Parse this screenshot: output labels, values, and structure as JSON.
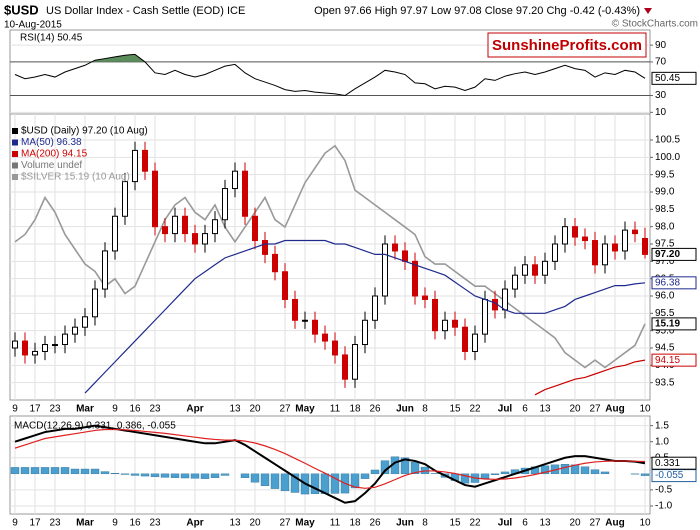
{
  "header": {
    "symbol": "$USD",
    "name": "US Dollar Index - Cash Settle (EOD) ICE",
    "date": "10-Aug-2015",
    "quote": "Open 97.66 High 97.97 Low 97.08 Close 97.20 Chg -0.42 (-0.43%)",
    "watermark": "© StockCharts.com",
    "brand": "SunshineProfits.com"
  },
  "chart_data": [
    {
      "type": "line",
      "title": "RSI(14) 50.45",
      "color": "#000000",
      "fill_above": 70,
      "fill_color": "#5b8c5b",
      "reference_lines": [
        70,
        30
      ],
      "values": [
        55,
        50,
        52,
        55,
        52,
        58,
        62,
        66,
        72,
        74,
        76,
        78,
        79,
        70,
        57,
        55,
        60,
        55,
        52,
        55,
        60,
        65,
        67,
        57,
        50,
        46,
        42,
        37,
        35,
        36,
        34,
        33,
        32,
        30,
        38,
        45,
        52,
        60,
        58,
        55,
        45,
        44,
        38,
        41,
        40,
        36,
        40,
        50,
        48,
        53,
        56,
        58,
        55,
        58,
        62,
        66,
        62,
        60,
        52,
        57,
        55,
        60,
        58,
        50.45
      ],
      "ylim": [
        8,
        108
      ],
      "yticks": [
        10,
        30,
        70,
        90
      ],
      "grid": true
    },
    {
      "type": "candlestick",
      "name": "$USD (Daily) 97.20 (10 Aug)",
      "close_label": "97.20",
      "up_color": "#000000",
      "down_color": "#cc0000",
      "volume_legend": "Volume undef",
      "categories": [
        "9",
        null,
        "17",
        null,
        "23",
        null,
        null,
        "Mar",
        null,
        null,
        "9",
        null,
        "16",
        null,
        "23",
        null,
        null,
        null,
        "Apr",
        null,
        null,
        null,
        "13",
        null,
        "20",
        null,
        null,
        "27",
        null,
        "May",
        null,
        null,
        "11",
        null,
        "18",
        null,
        "26",
        null,
        null,
        "Jun",
        null,
        "8",
        null,
        null,
        "15",
        null,
        "22",
        null,
        null,
        "Jul",
        null,
        "6",
        null,
        "13",
        null,
        null,
        "20",
        null,
        "27",
        null,
        "Aug",
        null,
        null,
        "10"
      ],
      "open": [
        94.5,
        94.7,
        94.3,
        94.4,
        94.6,
        94.6,
        94.9,
        95.1,
        95.4,
        96.2,
        97.3,
        98.3,
        99.3,
        100.2,
        99.6,
        98.0,
        97.8,
        98.3,
        97.8,
        97.5,
        97.8,
        98.2,
        99.1,
        99.6,
        98.3,
        97.6,
        97.2,
        96.7,
        95.9,
        95.3,
        95.3,
        94.9,
        94.7,
        94.3,
        93.6,
        94.6,
        95.3,
        96.0,
        97.5,
        97.3,
        97.0,
        96.0,
        95.9,
        95.0,
        95.3,
        95.1,
        94.4,
        94.9,
        95.9,
        95.6,
        96.2,
        96.6,
        96.9,
        96.6,
        97.0,
        97.5,
        98.0,
        97.7,
        97.6,
        96.9,
        97.5,
        97.3,
        97.9,
        97.66
      ],
      "high": [
        94.95,
        94.95,
        94.65,
        94.85,
        94.85,
        95.15,
        95.35,
        95.65,
        96.45,
        97.55,
        98.55,
        99.55,
        100.45,
        100.45,
        99.85,
        98.25,
        98.55,
        98.55,
        98.05,
        98.05,
        98.45,
        99.35,
        99.85,
        99.85,
        98.55,
        97.85,
        97.45,
        96.95,
        96.15,
        95.55,
        95.55,
        95.15,
        94.95,
        94.55,
        94.85,
        95.55,
        96.25,
        97.75,
        97.75,
        97.55,
        97.25,
        96.25,
        96.15,
        95.55,
        95.55,
        95.35,
        95.15,
        96.15,
        96.15,
        96.45,
        96.85,
        97.15,
        97.15,
        97.25,
        97.75,
        98.25,
        98.25,
        97.95,
        97.85,
        97.75,
        97.75,
        98.15,
        98.15,
        97.97
      ],
      "low": [
        94.25,
        94.05,
        94.05,
        94.15,
        94.35,
        94.35,
        94.65,
        94.85,
        95.15,
        95.95,
        97.05,
        98.05,
        99.05,
        99.35,
        97.75,
        97.55,
        97.55,
        97.55,
        97.25,
        97.25,
        97.55,
        97.95,
        98.85,
        98.05,
        97.35,
        96.95,
        96.45,
        95.65,
        95.05,
        95.05,
        94.65,
        94.45,
        94.05,
        93.35,
        93.35,
        94.35,
        95.05,
        95.75,
        97.05,
        96.75,
        95.75,
        95.65,
        94.75,
        94.75,
        94.85,
        94.15,
        94.15,
        94.65,
        95.35,
        95.35,
        95.95,
        96.35,
        96.35,
        96.35,
        96.75,
        97.25,
        97.45,
        97.35,
        96.65,
        96.65,
        97.05,
        97.05,
        97.55,
        97.08
      ],
      "close": [
        94.7,
        94.3,
        94.4,
        94.6,
        94.6,
        94.9,
        95.1,
        95.4,
        96.2,
        97.3,
        98.3,
        99.3,
        100.2,
        99.6,
        98.0,
        97.8,
        98.3,
        97.8,
        97.5,
        97.8,
        98.2,
        99.1,
        99.6,
        98.3,
        97.6,
        97.2,
        96.7,
        95.9,
        95.3,
        95.3,
        94.9,
        94.7,
        94.3,
        93.6,
        94.6,
        95.3,
        96.0,
        97.5,
        97.3,
        97.0,
        96.0,
        95.9,
        95.0,
        95.3,
        95.1,
        94.4,
        94.9,
        95.9,
        95.6,
        96.2,
        96.6,
        96.9,
        96.6,
        97.0,
        97.5,
        98.0,
        97.7,
        97.6,
        96.9,
        97.5,
        97.3,
        97.9,
        97.8,
        97.2
      ],
      "series": [
        {
          "name": "MA(50) 96.38",
          "color": "#1f2a8c",
          "values": [
            null,
            null,
            null,
            null,
            null,
            null,
            null,
            93.2,
            93.5,
            93.8,
            94.1,
            94.4,
            94.7,
            95.0,
            95.3,
            95.6,
            95.9,
            96.2,
            96.5,
            96.7,
            96.9,
            97.1,
            97.2,
            97.3,
            97.4,
            97.5,
            97.5,
            97.6,
            97.6,
            97.6,
            97.6,
            97.6,
            97.5,
            97.5,
            97.4,
            97.3,
            97.2,
            97.2,
            97.1,
            97.0,
            96.9,
            96.8,
            96.7,
            96.6,
            96.4,
            96.2,
            96.0,
            95.9,
            95.8,
            95.6,
            95.5,
            95.5,
            95.5,
            95.5,
            95.6,
            95.7,
            95.9,
            96.0,
            96.1,
            96.2,
            96.3,
            96.3,
            96.35,
            96.38
          ]
        },
        {
          "name": "MA(200) 94.15",
          "color": "#cc0000",
          "values": [
            null,
            null,
            null,
            null,
            null,
            null,
            null,
            null,
            null,
            null,
            null,
            null,
            null,
            null,
            null,
            null,
            null,
            null,
            null,
            null,
            null,
            null,
            null,
            null,
            null,
            null,
            null,
            null,
            null,
            null,
            null,
            null,
            null,
            null,
            null,
            null,
            null,
            null,
            null,
            null,
            null,
            null,
            null,
            null,
            null,
            null,
            null,
            null,
            null,
            null,
            null,
            null,
            93.15,
            93.3,
            93.4,
            93.5,
            93.6,
            93.65,
            93.75,
            93.85,
            93.95,
            94.0,
            94.1,
            94.15
          ]
        },
        {
          "name": "$SILVER 15.19 (10 Aug)",
          "color": "#999999",
          "axis": "y2",
          "values": [
            16.3,
            16.4,
            16.6,
            16.9,
            16.7,
            16.4,
            16.2,
            16.0,
            15.9,
            15.7,
            15.8,
            15.6,
            15.7,
            16.0,
            16.3,
            16.6,
            16.8,
            16.9,
            16.7,
            16.6,
            16.8,
            16.5,
            16.3,
            16.5,
            16.7,
            16.9,
            16.6,
            16.5,
            16.8,
            17.1,
            17.3,
            17.5,
            17.6,
            17.4,
            17.0,
            16.9,
            16.8,
            16.7,
            16.6,
            16.5,
            16.4,
            16.1,
            16.0,
            16.0,
            15.9,
            15.8,
            15.7,
            15.7,
            15.6,
            15.5,
            15.4,
            15.3,
            15.2,
            15.1,
            15.0,
            14.8,
            14.7,
            14.6,
            14.7,
            14.6,
            14.7,
            14.8,
            14.9,
            15.19
          ]
        }
      ],
      "ylim": [
        93.0,
        101.25
      ],
      "y2lim": [
        14.16,
        18.03
      ],
      "yticks": [
        93.5,
        {
          "value": 94,
          "label": "94.0"
        },
        94.5,
        {
          "value": 95,
          "label": "95.0"
        },
        95.5,
        {
          "value": 96,
          "label": "96.0"
        },
        96.5,
        {
          "value": 97,
          "label": "97.0"
        },
        97.5,
        {
          "value": 98,
          "label": "98.0"
        },
        98.5,
        {
          "value": 99,
          "label": "99.0"
        },
        99.5,
        {
          "value": 100,
          "label": "100.0"
        },
        100.5
      ],
      "grid": true
    },
    {
      "type": "macd",
      "title": "MACD(12,26,9) 0.331, 0.386, -0.055",
      "categories": [
        "9",
        null,
        "17",
        null,
        "23",
        null,
        null,
        "Mar",
        null,
        null,
        "9",
        null,
        "16",
        null,
        "23",
        null,
        null,
        null,
        "Apr",
        null,
        null,
        null,
        "13",
        null,
        "20",
        null,
        null,
        "27",
        null,
        "May",
        null,
        null,
        "11",
        null,
        "18",
        null,
        "26",
        null,
        null,
        "Jun",
        null,
        "8",
        null,
        null,
        "15",
        null,
        "22",
        null,
        null,
        "Jul",
        null,
        "6",
        null,
        "13",
        null,
        null,
        "20",
        null,
        "27",
        null,
        "Aug",
        null,
        null,
        "10"
      ],
      "series": [
        {
          "kind": "bar",
          "color": "#4b9fcf",
          "values": [
            0.2,
            0.2,
            0.2,
            0.2,
            0.2,
            0.2,
            0.15,
            0.15,
            0.15,
            0.07,
            0.02,
            -0.02,
            -0.05,
            -0.07,
            -0.09,
            -0.11,
            -0.12,
            -0.13,
            -0.14,
            -0.15,
            -0.12,
            -0.05,
            0.0,
            -0.12,
            -0.26,
            -0.37,
            -0.46,
            -0.53,
            -0.58,
            -0.63,
            -0.62,
            -0.62,
            -0.61,
            -0.6,
            -0.44,
            -0.15,
            0.12,
            0.41,
            0.53,
            0.5,
            0.36,
            0.21,
            0.01,
            -0.11,
            -0.21,
            -0.29,
            -0.27,
            -0.14,
            -0.03,
            0.06,
            0.13,
            0.18,
            0.22,
            0.25,
            0.28,
            0.3,
            0.28,
            0.22,
            0.13,
            0.06,
            0.0,
            0.0,
            -0.01,
            -0.055
          ]
        },
        {
          "kind": "line",
          "color": "#000000",
          "values": [
            1.0,
            1.1,
            1.2,
            1.3,
            1.35,
            1.4,
            1.4,
            1.45,
            1.5,
            1.45,
            1.4,
            1.35,
            1.3,
            1.25,
            1.2,
            1.15,
            1.1,
            1.05,
            1.0,
            0.95,
            0.95,
            1.0,
            1.05,
            0.9,
            0.7,
            0.5,
            0.3,
            0.1,
            -0.1,
            -0.3,
            -0.45,
            -0.6,
            -0.75,
            -0.9,
            -0.85,
            -0.6,
            -0.3,
            0.1,
            0.35,
            0.45,
            0.4,
            0.3,
            0.1,
            -0.05,
            -0.2,
            -0.35,
            -0.4,
            -0.3,
            -0.2,
            -0.1,
            0.0,
            0.1,
            0.2,
            0.3,
            0.4,
            0.5,
            0.55,
            0.55,
            0.5,
            0.45,
            0.4,
            0.4,
            0.38,
            0.331
          ]
        },
        {
          "kind": "line",
          "color": "#e02020",
          "values": [
            0.8,
            0.9,
            1.0,
            1.1,
            1.15,
            1.2,
            1.25,
            1.3,
            1.35,
            1.38,
            1.38,
            1.37,
            1.35,
            1.32,
            1.29,
            1.26,
            1.22,
            1.18,
            1.14,
            1.1,
            1.07,
            1.05,
            1.05,
            1.02,
            0.96,
            0.87,
            0.76,
            0.63,
            0.48,
            0.33,
            0.17,
            0.02,
            -0.14,
            -0.3,
            -0.41,
            -0.45,
            -0.42,
            -0.31,
            -0.18,
            -0.05,
            0.04,
            0.09,
            0.09,
            0.06,
            0.01,
            -0.06,
            -0.13,
            -0.16,
            -0.17,
            -0.16,
            -0.13,
            -0.08,
            -0.02,
            0.05,
            0.12,
            0.2,
            0.27,
            0.33,
            0.37,
            0.39,
            0.4,
            0.4,
            0.39,
            0.386
          ]
        }
      ],
      "ylim": [
        -1.25,
        1.8
      ],
      "yticks": [
        1.5,
        {
          "value": 1,
          "label": "1.0"
        },
        0.5,
        -0.5,
        {
          "value": -1,
          "label": "-1.0"
        }
      ],
      "grid": true
    }
  ]
}
